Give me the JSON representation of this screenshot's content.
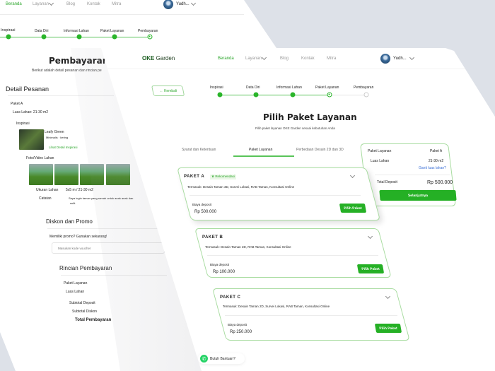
{
  "colors": {
    "accent": "#2aa52a",
    "background": "#dde1e8",
    "link": "#3b6fd6"
  },
  "back": {
    "nav": {
      "items": [
        "Beranda",
        "Layanan",
        "Blog",
        "Kontak",
        "Mitra"
      ],
      "user": "Yudh..."
    },
    "stepper": [
      "Inspirasi",
      "Data Diri",
      "Informasi Lahan",
      "Paket Layanan",
      "Pembayaran"
    ],
    "title": "Pembayaran D",
    "subtitle": "Berikut adalah detail pesanan dan rincian pe",
    "detail": {
      "heading": "Detail Pesanan",
      "paket": "Paket A",
      "luas": "Luas Lahan: 21-30 m2",
      "inspirasi_label": "Inspirasi",
      "inspirasi_name": "Leafy Green",
      "inspirasi_tags": "Minimalis  ·  kering",
      "inspirasi_link": "Lihat Detail Inspirasi",
      "foto_label": "Foto/Video Lahan",
      "ukuran_label": "Ukuran Lahan",
      "ukuran_value": "5x5 m / 21-30 m2",
      "catatan_label": "Catatan",
      "catatan_value": "Saya ingin taman yang ramah untuk anak anak dan",
      "catatan_value2": "sulit."
    },
    "promo": {
      "heading": "Diskon dan Promo",
      "prompt": "Memiliki promo? Gunakan sekarang!",
      "placeholder": "Masukan kode voucher"
    },
    "rincian": {
      "heading": "Rincian Pembayaran",
      "items": [
        "Paket Layanan",
        "Luas Lahan",
        "Subtotal Deposit",
        "Subtotal Diskon"
      ],
      "total": "Total Pembayaran"
    }
  },
  "front": {
    "logo": {
      "a": "OKE",
      "b": " Garden"
    },
    "nav": {
      "items": [
        "Beranda",
        "Layanan",
        "Blog",
        "Kontak",
        "Mitra"
      ],
      "user": "Yudh..."
    },
    "back_button": "← Kembali",
    "stepper": [
      "Inspirasi",
      "Data Diri",
      "Informasi Lahan",
      "Paket Layanan",
      "Pembayaran"
    ],
    "current_step": 4,
    "title": "Pilih Paket Layanan",
    "subtitle": "Pilih paket layanan OKE Garden sesuai kebutuhan Anda",
    "tabs": [
      "Syarat dan Ketentuan",
      "Paket Layanan",
      "Perbedaan Desain 2D dan 3D"
    ],
    "active_tab": 1,
    "packages": [
      {
        "name": "PAKET A",
        "badge": "Rekomendasi",
        "includes": "Termasuk: Desain Taman 3D, Survei Lokasi, RAB Taman, Konsultasi Online",
        "deposit_label": "Biaya deposit",
        "price": "Rp 500.000",
        "button": "Pilih Paket"
      },
      {
        "name": "PAKET B",
        "includes": "Termasuk: Desain Taman 2D, RAB Taman, Konsultasi Online",
        "deposit_label": "Biaya deposit",
        "price": "Rp 100.000",
        "button": "Pilih Paket"
      },
      {
        "name": "PAKET C",
        "includes": "Termasuk: Desain Taman 2D, Survei Lokasi, RAB Taman, Konsultasi Online",
        "deposit_label": "Biaya deposit",
        "price": "Rp 250.000",
        "button": "Pilih Paket"
      }
    ],
    "summary": {
      "paket_label": "Paket Layanan",
      "paket_value": "Paket A",
      "luas_label": "Luas Lahan",
      "luas_value": "21-30 m2",
      "change_link": "Ganti luas lahan?",
      "total_label": "Total Deposit",
      "total_value": "Rp 500.000",
      "next": "Selanjutnya"
    },
    "help": "Butuh Bantuan?"
  }
}
